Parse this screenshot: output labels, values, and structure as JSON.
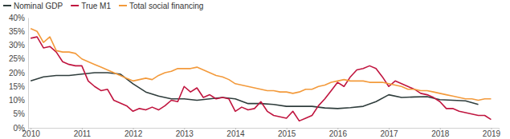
{
  "chart_data": {
    "type": "line",
    "legend": "top-left",
    "grid": false,
    "xlim": [
      2009.95,
      2019.15
    ],
    "xticks": [
      2010,
      2011,
      2012,
      2013,
      2014,
      2015,
      2016,
      2017,
      2018,
      2019
    ],
    "ylim": [
      0,
      40
    ],
    "yticks": [
      {
        "value": 0,
        "label": "0%"
      },
      {
        "value": 5,
        "label": "5%"
      },
      {
        "value": 10,
        "label": "10%"
      },
      {
        "value": 15,
        "label": "15%"
      },
      {
        "value": 20,
        "label": "20%"
      },
      {
        "value": 25,
        "label": "25%"
      },
      {
        "value": 30,
        "label": "30%"
      },
      {
        "value": 35,
        "label": "35%"
      },
      {
        "value": 40,
        "label": "40%"
      }
    ],
    "series": [
      {
        "name": "Nominal GDP",
        "color": "#2f3d3c",
        "x": [
          2010,
          2010.25,
          2010.5,
          2010.75,
          2011,
          2011.25,
          2011.5,
          2011.75,
          2012,
          2012.25,
          2012.5,
          2012.75,
          2013,
          2013.25,
          2013.5,
          2013.75,
          2014,
          2014.25,
          2014.5,
          2014.75,
          2015,
          2015.25,
          2015.5,
          2015.75,
          2016,
          2016.25,
          2016.5,
          2016.75,
          2017,
          2017.25,
          2017.5,
          2017.75,
          2018,
          2018.25,
          2018.5,
          2018.75
        ],
        "values": [
          17,
          18.5,
          19,
          19,
          19.5,
          20,
          20,
          19.5,
          16,
          13,
          11.5,
          10.5,
          10.5,
          10,
          10.5,
          11,
          10.5,
          8.8,
          8.8,
          8.5,
          7.8,
          7.8,
          7.8,
          7.2,
          7,
          7.3,
          7.8,
          9.5,
          12,
          11,
          11.2,
          11.3,
          10.2,
          10,
          9.8,
          8.5
        ]
      },
      {
        "name": "True M1",
        "color": "#c0153f",
        "x": [
          2010,
          2010.125,
          2010.25,
          2010.375,
          2010.5,
          2010.625,
          2010.75,
          2010.875,
          2011,
          2011.125,
          2011.25,
          2011.375,
          2011.5,
          2011.625,
          2011.75,
          2011.875,
          2012,
          2012.125,
          2012.25,
          2012.375,
          2012.5,
          2012.625,
          2012.75,
          2012.875,
          2013,
          2013.125,
          2013.25,
          2013.375,
          2013.5,
          2013.625,
          2013.75,
          2013.875,
          2014,
          2014.125,
          2014.25,
          2014.375,
          2014.5,
          2014.625,
          2014.75,
          2014.875,
          2015,
          2015.125,
          2015.25,
          2015.375,
          2015.5,
          2015.625,
          2015.75,
          2015.875,
          2016,
          2016.125,
          2016.25,
          2016.375,
          2016.5,
          2016.625,
          2016.75,
          2016.875,
          2017,
          2017.125,
          2017.25,
          2017.375,
          2017.5,
          2017.625,
          2017.75,
          2017.875,
          2018,
          2018.125,
          2018.25,
          2018.375,
          2018.5,
          2018.625,
          2018.75,
          2018.875,
          2019
        ],
        "values": [
          32.5,
          33,
          29,
          29.5,
          27.5,
          24,
          23,
          22.5,
          22.5,
          17,
          15,
          13.5,
          14,
          10,
          9,
          8,
          6,
          7,
          6.5,
          7.5,
          6.5,
          8,
          10,
          9.5,
          15,
          13,
          14.5,
          11,
          12,
          10.5,
          11,
          10.5,
          6,
          7.5,
          6.5,
          7,
          9.5,
          6,
          4.5,
          4,
          3.5,
          6,
          2.5,
          3.5,
          4.5,
          8,
          10.5,
          13.5,
          16.5,
          15,
          18.5,
          21,
          21.5,
          22.5,
          21.5,
          18.5,
          15,
          17,
          16,
          15,
          14,
          12.5,
          12,
          11,
          9.5,
          7,
          7,
          6,
          5.5,
          5,
          4.5,
          4.5,
          3
        ]
      },
      {
        "name": "Total social financing",
        "color": "#f39a3b",
        "x": [
          2010,
          2010.125,
          2010.25,
          2010.375,
          2010.5,
          2010.625,
          2010.75,
          2010.875,
          2011,
          2011.125,
          2011.25,
          2011.375,
          2011.5,
          2011.625,
          2011.75,
          2011.875,
          2012,
          2012.125,
          2012.25,
          2012.375,
          2012.5,
          2012.625,
          2012.75,
          2012.875,
          2013,
          2013.125,
          2013.25,
          2013.375,
          2013.5,
          2013.625,
          2013.75,
          2013.875,
          2014,
          2014.125,
          2014.25,
          2014.375,
          2014.5,
          2014.625,
          2014.75,
          2014.875,
          2015,
          2015.125,
          2015.25,
          2015.375,
          2015.5,
          2015.625,
          2015.75,
          2015.875,
          2016,
          2016.125,
          2016.25,
          2016.375,
          2016.5,
          2016.625,
          2016.75,
          2016.875,
          2017,
          2017.125,
          2017.25,
          2017.375,
          2017.5,
          2017.625,
          2017.75,
          2017.875,
          2018,
          2018.125,
          2018.25,
          2018.375,
          2018.5,
          2018.625,
          2018.75,
          2018.875,
          2019
        ],
        "values": [
          36,
          35,
          31,
          33,
          28,
          27.5,
          27.5,
          27,
          25,
          24,
          23,
          22,
          21,
          20,
          19,
          18,
          17,
          17.5,
          18,
          17.5,
          19,
          20,
          20.5,
          21.5,
          21.5,
          21.5,
          22,
          21,
          20,
          19,
          18.5,
          17.5,
          16,
          15.5,
          15,
          14.5,
          14,
          13.5,
          13.5,
          13,
          13,
          12.5,
          13,
          14,
          14,
          15,
          15.5,
          16.5,
          17,
          17.5,
          17,
          17,
          17,
          16.5,
          16.5,
          16.5,
          16,
          15.5,
          15,
          14,
          14,
          13.5,
          13.5,
          13,
          12.5,
          12,
          11.5,
          11,
          10.5,
          10.5,
          10,
          10.5,
          10.5
        ]
      }
    ]
  }
}
